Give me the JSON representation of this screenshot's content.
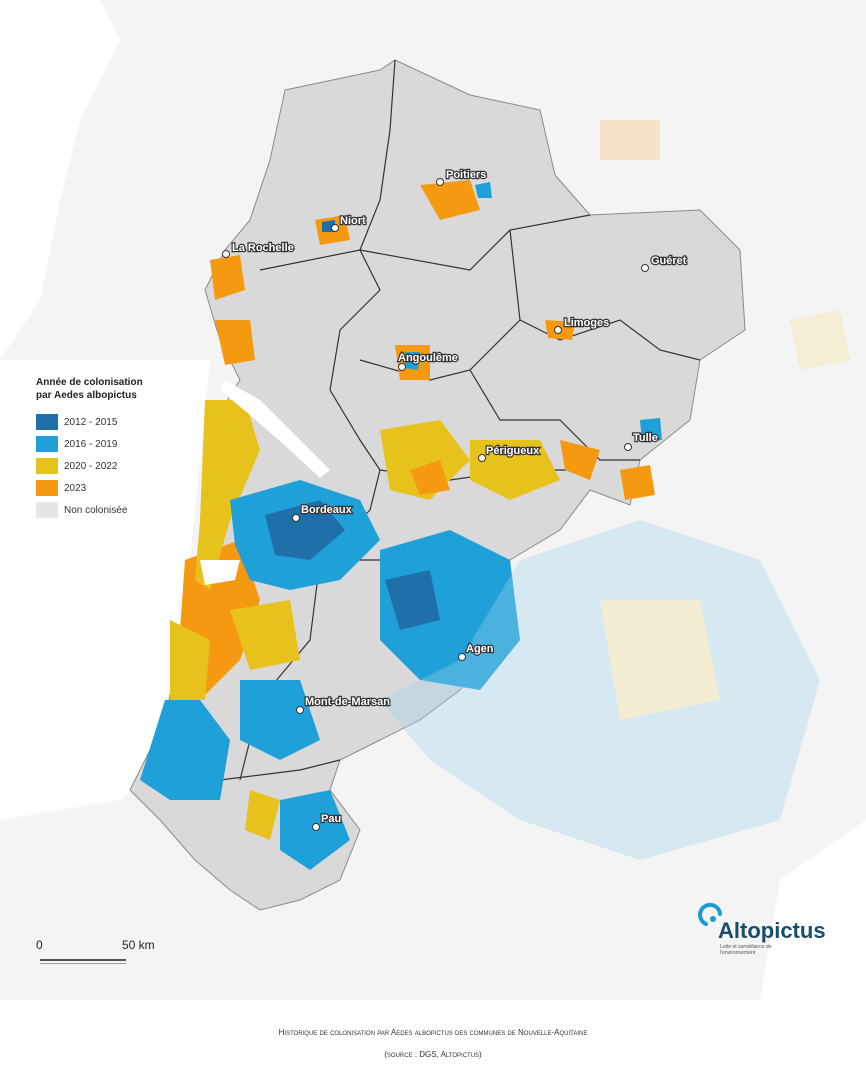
{
  "legend": {
    "title_line1": "Année de colonisation",
    "title_line2": "par Aedes albopictus",
    "items": [
      {
        "label": "2012 - 2015",
        "color": "#1f6fa8"
      },
      {
        "label": "2016 - 2019",
        "color": "#20a0d8"
      },
      {
        "label": "2020 - 2022",
        "color": "#e8c21c"
      },
      {
        "label": "2023",
        "color": "#f59a10"
      },
      {
        "label": "Non colonisée",
        "color": "#e6e6e6"
      }
    ]
  },
  "scale": {
    "zero": "0",
    "end": "50 km"
  },
  "cities": [
    {
      "name": "Poitiers"
    },
    {
      "name": "Niort"
    },
    {
      "name": "La Rochelle"
    },
    {
      "name": "Guéret"
    },
    {
      "name": "Limoges"
    },
    {
      "name": "Angoulême"
    },
    {
      "name": "Tulle"
    },
    {
      "name": "Périgueux"
    },
    {
      "name": "Bordeaux"
    },
    {
      "name": "Agen"
    },
    {
      "name": "Mont-de-Marsan"
    },
    {
      "name": "Pau"
    }
  ],
  "logo": {
    "name": "Altopictus",
    "tagline": "Lutte et surveillance de l'environnement"
  },
  "caption": {
    "line1": "Historique de colonisation par Aedes albopictus des communes de Nouvelle-Aquitaine",
    "line2": "(source : DGS, Altopictus)"
  },
  "colors": {
    "region": "#d9d9d9",
    "outside": "#f7f7f7",
    "border": "#333333"
  }
}
